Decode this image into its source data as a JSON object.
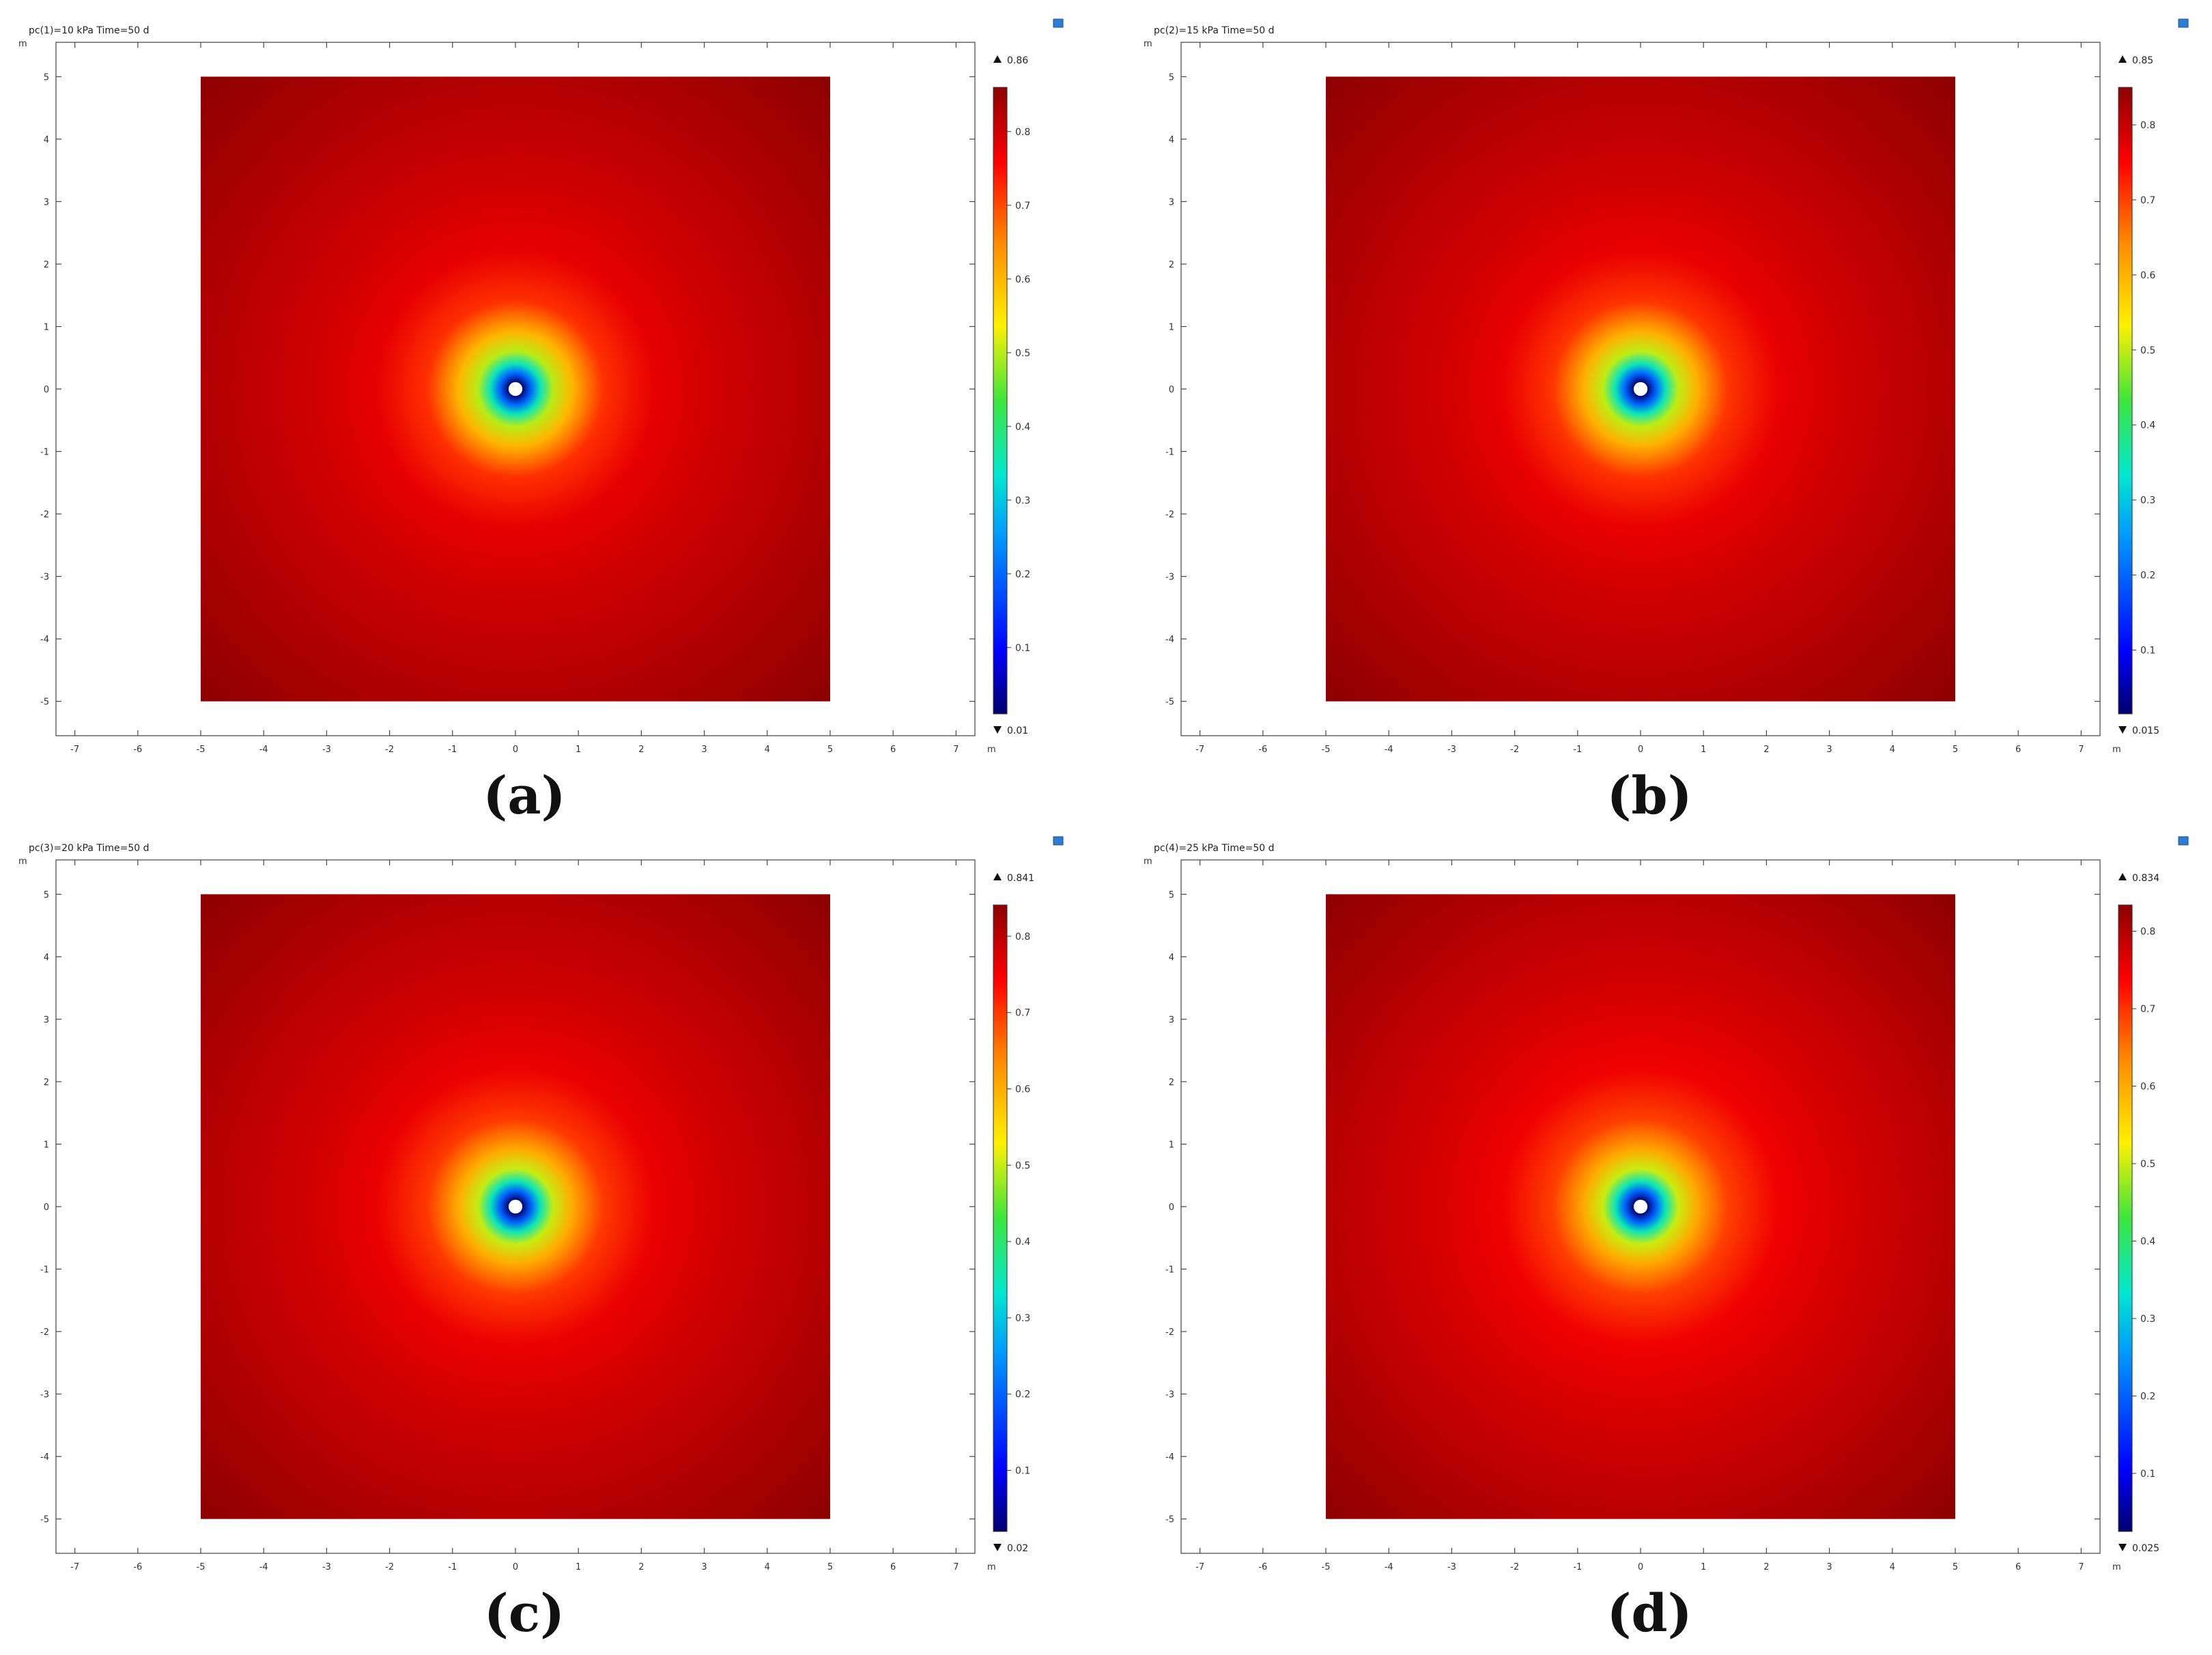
{
  "axis_unit": "m",
  "panels": [
    {
      "title": "pc(1)=10 kPa Time=50 d",
      "caption": "(a)",
      "colorbar_max": "0.86",
      "colorbar_min": "0.01"
    },
    {
      "title": "pc(2)=15 kPa Time=50 d",
      "caption": "(b)",
      "colorbar_max": "0.85",
      "colorbar_min": "0.015"
    },
    {
      "title": "pc(3)=20 kPa Time=50 d",
      "caption": "(c)",
      "colorbar_max": "0.841",
      "colorbar_min": "0.02"
    },
    {
      "title": "pc(4)=25 kPa Time=50 d",
      "caption": "(d)",
      "colorbar_max": "0.834",
      "colorbar_min": "0.025"
    }
  ],
  "chart_data": [
    {
      "type": "heatmap",
      "title": "pc(1)=10 kPa Time=50 d",
      "xlabel": "m",
      "ylabel": "m",
      "xlim": [
        -7.3,
        7.3
      ],
      "ylim": [
        -5.55,
        5.55
      ],
      "xticks": [
        -7,
        -6,
        -5,
        -4,
        -3,
        -2,
        -1,
        0,
        1,
        2,
        3,
        4,
        5,
        6,
        7
      ],
      "yticks": [
        -5,
        -4,
        -3,
        -2,
        -1,
        0,
        1,
        2,
        3,
        4,
        5
      ],
      "domain": {
        "x": [
          -5,
          5
        ],
        "y": [
          -5,
          5
        ]
      },
      "hole_center": [
        0,
        0
      ],
      "colorbar": {
        "min": 0.01,
        "max": 0.86,
        "ticks": [
          0.1,
          0.2,
          0.3,
          0.4,
          0.5,
          0.6,
          0.7,
          0.8
        ],
        "colormap": "rainbow"
      },
      "field": [
        {
          "r": 0.1,
          "value": 0.01
        },
        {
          "r": 0.25,
          "value": 0.2
        },
        {
          "r": 0.4,
          "value": 0.35
        },
        {
          "r": 0.6,
          "value": 0.5
        },
        {
          "r": 0.9,
          "value": 0.6
        },
        {
          "r": 1.4,
          "value": 0.72
        },
        {
          "r": 2.2,
          "value": 0.78
        },
        {
          "r": 3.2,
          "value": 0.8
        },
        {
          "r": 4.5,
          "value": 0.82
        },
        {
          "r": 7.1,
          "value": 0.86
        }
      ]
    },
    {
      "type": "heatmap",
      "title": "pc(2)=15 kPa Time=50 d",
      "xlabel": "m",
      "ylabel": "m",
      "xlim": [
        -7.3,
        7.3
      ],
      "ylim": [
        -5.55,
        5.55
      ],
      "xticks": [
        -7,
        -6,
        -5,
        -4,
        -3,
        -2,
        -1,
        0,
        1,
        2,
        3,
        4,
        5,
        6,
        7
      ],
      "yticks": [
        -5,
        -4,
        -3,
        -2,
        -1,
        0,
        1,
        2,
        3,
        4,
        5
      ],
      "domain": {
        "x": [
          -5,
          5
        ],
        "y": [
          -5,
          5
        ]
      },
      "hole_center": [
        0,
        0
      ],
      "colorbar": {
        "min": 0.015,
        "max": 0.85,
        "ticks": [
          0.1,
          0.2,
          0.3,
          0.4,
          0.5,
          0.6,
          0.7,
          0.8
        ],
        "colormap": "rainbow"
      },
      "field": [
        {
          "r": 0.1,
          "value": 0.015
        },
        {
          "r": 0.25,
          "value": 0.2
        },
        {
          "r": 0.4,
          "value": 0.35
        },
        {
          "r": 0.6,
          "value": 0.5
        },
        {
          "r": 0.9,
          "value": 0.6
        },
        {
          "r": 1.4,
          "value": 0.71
        },
        {
          "r": 2.2,
          "value": 0.77
        },
        {
          "r": 3.2,
          "value": 0.79
        },
        {
          "r": 4.5,
          "value": 0.81
        },
        {
          "r": 7.1,
          "value": 0.85
        }
      ]
    },
    {
      "type": "heatmap",
      "title": "pc(3)=20 kPa Time=50 d",
      "xlabel": "m",
      "ylabel": "m",
      "xlim": [
        -7.3,
        7.3
      ],
      "ylim": [
        -5.55,
        5.55
      ],
      "xticks": [
        -7,
        -6,
        -5,
        -4,
        -3,
        -2,
        -1,
        0,
        1,
        2,
        3,
        4,
        5,
        6,
        7
      ],
      "yticks": [
        -5,
        -4,
        -3,
        -2,
        -1,
        0,
        1,
        2,
        3,
        4,
        5
      ],
      "domain": {
        "x": [
          -5,
          5
        ],
        "y": [
          -5,
          5
        ]
      },
      "hole_center": [
        0,
        0
      ],
      "colorbar": {
        "min": 0.02,
        "max": 0.841,
        "ticks": [
          0.1,
          0.2,
          0.3,
          0.4,
          0.5,
          0.6,
          0.7,
          0.8
        ],
        "colormap": "rainbow"
      },
      "field": [
        {
          "r": 0.1,
          "value": 0.02
        },
        {
          "r": 0.25,
          "value": 0.2
        },
        {
          "r": 0.4,
          "value": 0.35
        },
        {
          "r": 0.6,
          "value": 0.5
        },
        {
          "r": 0.9,
          "value": 0.6
        },
        {
          "r": 1.4,
          "value": 0.7
        },
        {
          "r": 2.2,
          "value": 0.76
        },
        {
          "r": 3.2,
          "value": 0.78
        },
        {
          "r": 4.5,
          "value": 0.8
        },
        {
          "r": 7.1,
          "value": 0.841
        }
      ]
    },
    {
      "type": "heatmap",
      "title": "pc(4)=25 kPa Time=50 d",
      "xlabel": "m",
      "ylabel": "m",
      "xlim": [
        -7.3,
        7.3
      ],
      "ylim": [
        -5.55,
        5.55
      ],
      "xticks": [
        -7,
        -6,
        -5,
        -4,
        -3,
        -2,
        -1,
        0,
        1,
        2,
        3,
        4,
        5,
        6,
        7
      ],
      "yticks": [
        -5,
        -4,
        -3,
        -2,
        -1,
        0,
        1,
        2,
        3,
        4,
        5
      ],
      "domain": {
        "x": [
          -5,
          5
        ],
        "y": [
          -5,
          5
        ]
      },
      "hole_center": [
        0,
        0
      ],
      "colorbar": {
        "min": 0.025,
        "max": 0.834,
        "ticks": [
          0.1,
          0.2,
          0.3,
          0.4,
          0.5,
          0.6,
          0.7,
          0.8
        ],
        "colormap": "rainbow"
      },
      "field": [
        {
          "r": 0.1,
          "value": 0.025
        },
        {
          "r": 0.25,
          "value": 0.2
        },
        {
          "r": 0.4,
          "value": 0.35
        },
        {
          "r": 0.6,
          "value": 0.5
        },
        {
          "r": 0.9,
          "value": 0.6
        },
        {
          "r": 1.4,
          "value": 0.69
        },
        {
          "r": 2.2,
          "value": 0.75
        },
        {
          "r": 3.2,
          "value": 0.77
        },
        {
          "r": 4.5,
          "value": 0.79
        },
        {
          "r": 7.1,
          "value": 0.834
        }
      ]
    }
  ]
}
